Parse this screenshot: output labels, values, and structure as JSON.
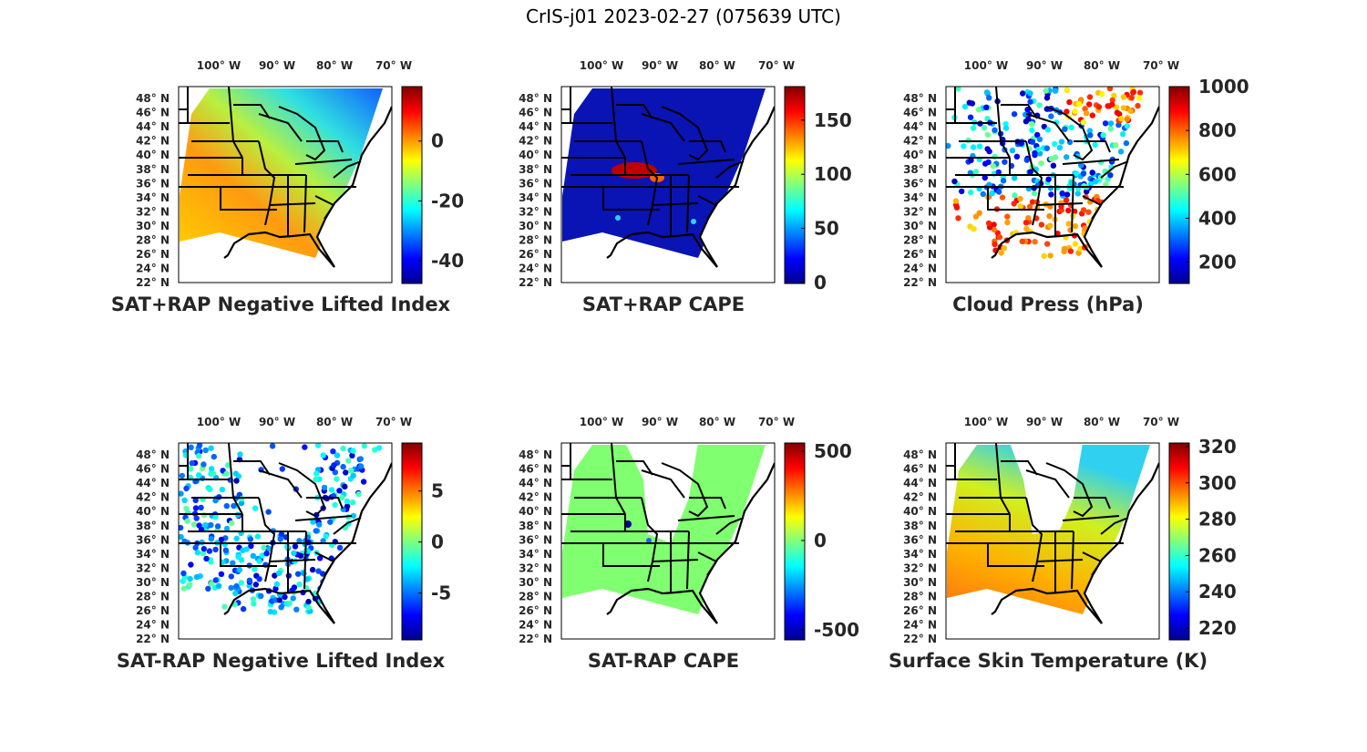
{
  "figure": {
    "title": "CrIS-j01 2023-02-27 (075639 UTC)",
    "lon_labels": [
      "100° W",
      "90° W",
      "80° W",
      "70° W"
    ],
    "lat_labels": [
      "48° N",
      "46° N",
      "44° N",
      "42° N",
      "40° N",
      "38° N",
      "36° N",
      "34° N",
      "32° N",
      "30° N",
      "28° N",
      "26° N",
      "24° N",
      "22° N"
    ],
    "colormap": "jet",
    "colors": {
      "land_outline": "#000000",
      "ocean": "#ffffff"
    }
  },
  "panels": [
    {
      "title": "SAT+RAP Negative Lifted Index",
      "clim": [
        -47.3,
        18.2
      ],
      "ticks": [
        "0",
        "-20",
        "-40"
      ],
      "tick_values": [
        0,
        -20,
        -40
      ]
    },
    {
      "title": "SAT+RAP CAPE",
      "clim": [
        0,
        181
      ],
      "ticks": [
        "0",
        "50",
        "100",
        "150"
      ],
      "tick_values": [
        0,
        50,
        100,
        150
      ]
    },
    {
      "title": "Cloud Press (hPa)",
      "clim": [
        107,
        1000
      ],
      "ticks": [
        "200",
        "400",
        "600",
        "800",
        "1000"
      ],
      "tick_values": [
        200,
        400,
        600,
        800,
        1000
      ]
    },
    {
      "title": "SAT-RAP Negative Lifted Index",
      "clim": [
        -9.5,
        9.7
      ],
      "ticks": [
        "5",
        "0",
        "-5"
      ],
      "tick_values": [
        5,
        0,
        -5
      ]
    },
    {
      "title": "SAT-RAP CAPE",
      "clim": [
        -551,
        546
      ],
      "ticks": [
        "500",
        "0",
        "-500"
      ],
      "tick_values": [
        500,
        0,
        -500
      ]
    },
    {
      "title": "Surface Skin Temperature (K)",
      "clim": [
        214,
        322
      ],
      "ticks": [
        "320",
        "300",
        "280",
        "260",
        "240",
        "220"
      ],
      "tick_values": [
        320,
        300,
        280,
        260,
        240,
        220
      ]
    }
  ]
}
